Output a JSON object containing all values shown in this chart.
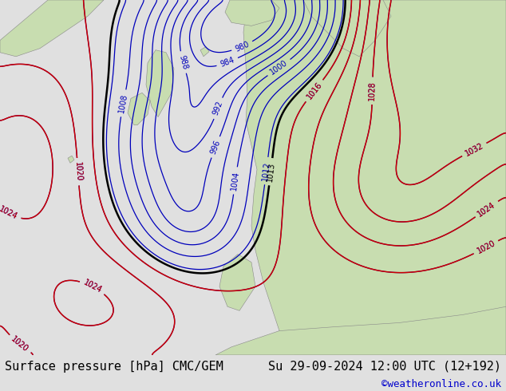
{
  "title_left": "Surface pressure [hPa] CMC/GEM",
  "title_right": "Su 29-09-2024 12:00 UTC (12+192)",
  "watermark": "©weatheronline.co.uk",
  "bg_sea_color": "#d8e4ee",
  "land_color": "#c8ddb0",
  "coast_color": "#888888",
  "isobar_blue_color": "#0000bb",
  "isobar_red_color": "#cc0000",
  "isobar_black_color": "#000000",
  "footer_bg": "#e0e0e0",
  "footer_text_color": "#000000",
  "watermark_color": "#0000cc",
  "font_size_footer": 11,
  "font_size_labels": 7,
  "blue_levels": [
    980,
    984,
    988,
    992,
    996,
    1000,
    1004,
    1008,
    1012,
    1016,
    1020,
    1024,
    1028,
    1032
  ],
  "red_levels": [
    1016,
    1020,
    1024,
    1028,
    1032
  ],
  "black_levels": [
    1013
  ]
}
